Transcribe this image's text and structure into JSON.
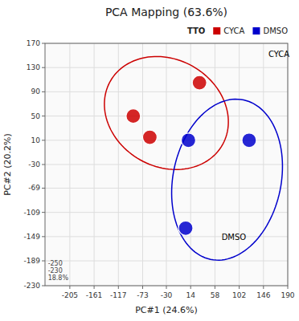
{
  "chart_data": {
    "type": "scatter",
    "title": "PCA Mapping (63.6%)",
    "x_label": "PC#1 (24.6%)",
    "y_label": "PC#2 (20.2%)",
    "legend_title": "TTO",
    "legend": "upper right",
    "grid": true,
    "xlim": [
      -250,
      190
    ],
    "ylim": [
      -230,
      170
    ],
    "xticks": [
      -205,
      -161,
      -117,
      -73,
      -30,
      14,
      58,
      102,
      146,
      190
    ],
    "yticks": [
      -230,
      -189,
      -149,
      -109,
      -69,
      -30,
      10,
      50,
      90,
      130,
      170
    ],
    "series": [
      {
        "name": "CYCA",
        "color": "#cc0000",
        "x": [
          -90,
          -60,
          30
        ],
        "y": [
          50,
          15,
          105
        ],
        "ellipse": {
          "cx": -30,
          "cy": 55,
          "width": 230,
          "height": 180,
          "angle": -20
        }
      },
      {
        "name": "DMSO",
        "color": "#0000cc",
        "x": [
          10,
          120,
          5
        ],
        "y": [
          10,
          10,
          -135
        ],
        "ellipse": {
          "cx": 80,
          "cy": -55,
          "width": 195,
          "height": 270,
          "angle": -15
        }
      }
    ],
    "annotations": [
      {
        "text": "CYCA",
        "x": 155,
        "y": 148
      },
      {
        "text": "DMSO",
        "x": 70,
        "y": -155
      },
      {
        "text": "-250\n-230\n18.8%",
        "x": -252,
        "y": -225
      }
    ]
  }
}
